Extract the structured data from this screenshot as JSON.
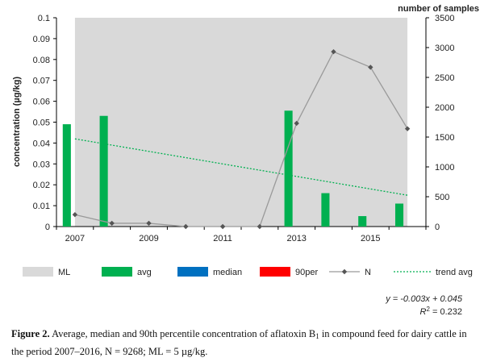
{
  "chart_data": {
    "type": "bar",
    "years": [
      2007,
      2008,
      2009,
      2010,
      2011,
      2012,
      2013,
      2014,
      2015,
      2016
    ],
    "series": [
      {
        "name": "ML",
        "kind": "area",
        "color": "#d9d9d9",
        "x_from": 2007,
        "x_to": 2016,
        "value": 0.1
      },
      {
        "name": "avg",
        "kind": "bar",
        "color": "#00b050",
        "values": [
          0.049,
          0.053,
          0,
          0,
          0,
          0,
          0.0555,
          0.016,
          0.005,
          0.011
        ]
      },
      {
        "name": "median",
        "kind": "bar",
        "color": "#0070c0",
        "values": [
          0,
          0,
          0,
          0,
          0,
          0,
          0,
          0,
          0,
          0
        ]
      },
      {
        "name": "90per",
        "kind": "bar",
        "color": "#ff0000",
        "values": [
          0,
          0,
          0,
          0,
          0,
          0,
          0,
          0,
          0,
          0
        ]
      },
      {
        "name": "N",
        "kind": "line",
        "axis": "right",
        "color": "#9a9a9a",
        "marker_color": "#555555",
        "values": [
          200,
          55,
          55,
          0,
          0,
          0,
          1730,
          2930,
          2670,
          1640
        ]
      },
      {
        "name": "trend avg",
        "kind": "trend",
        "color": "#00b050",
        "slope": -0.003,
        "intercept": 0.045
      }
    ],
    "x_tick_labels": [
      "2007",
      "2009",
      "2011",
      "2013",
      "2015"
    ],
    "y_left": {
      "label": "concentration  (µg/kg)",
      "ylim": [
        0,
        0.1
      ],
      "tick_labels": [
        "0",
        "0.01",
        "0.02",
        "0.03",
        "0.04",
        "0.05",
        "0.06",
        "0.07",
        "0.08",
        "0.09",
        "0.1"
      ]
    },
    "y_right": {
      "label": "number of samples",
      "ylim": [
        0,
        3500
      ],
      "tick_labels": [
        "0",
        "500",
        "1000",
        "1500",
        "2000",
        "2500",
        "3000",
        "3500"
      ]
    },
    "legend_position": "bottom",
    "trend_equation": "y = -0.003x + 0.045",
    "trend_r2_prefix": "R",
    "trend_r2_value": " = 0.232"
  },
  "caption": {
    "label": "Figure 2.",
    "text_before_sub": " Average, median and 90th percentile concentration of aflatoxin B",
    "subscript": "1",
    "text_after_sub": " in compound feed for dairy cattle in the period 2007–2016, N = 9268; ML = 5 µg/kg."
  }
}
